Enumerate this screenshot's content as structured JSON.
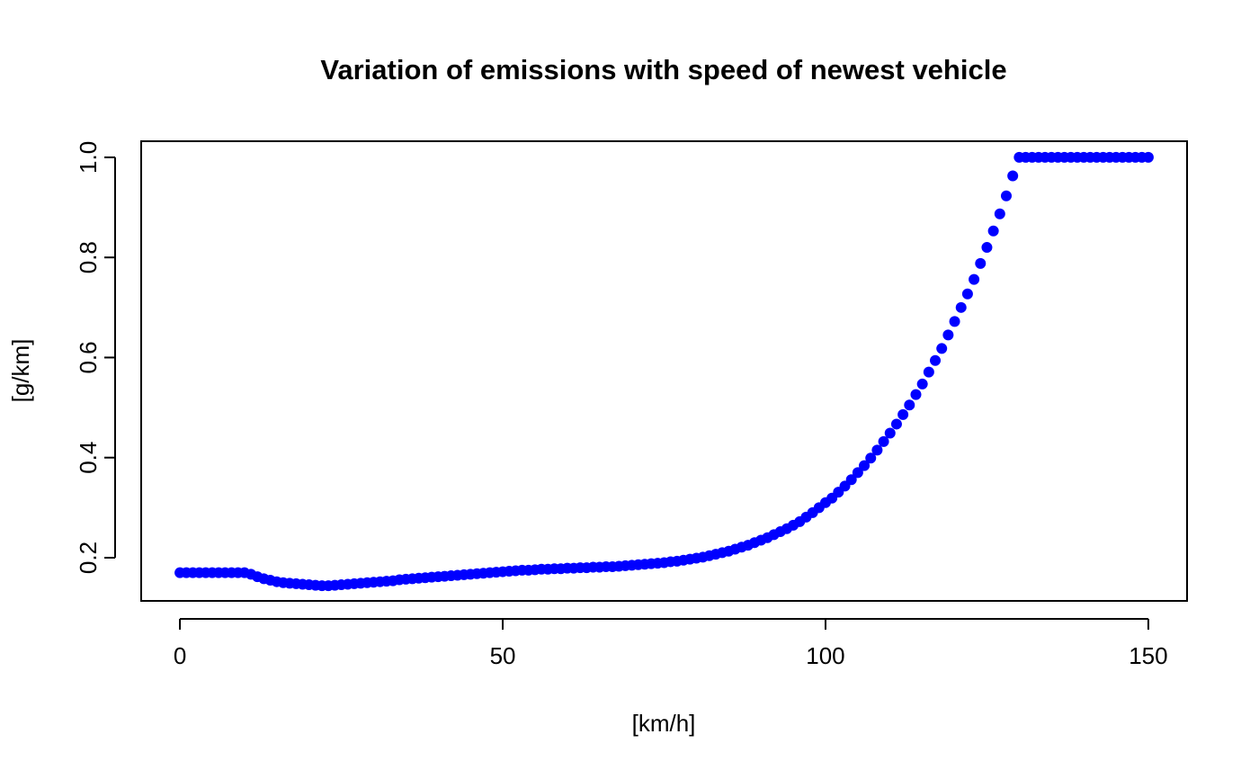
{
  "chart_data": {
    "type": "scatter",
    "title": "Variation of emissions with speed of newest vehicle",
    "x_label": "[km/h]",
    "y_label": "[g/km]",
    "xlim": [
      -6,
      156
    ],
    "ylim": [
      0.1137,
      1.0322
    ],
    "xticks": [
      0,
      50,
      100,
      150
    ],
    "yticks": [
      0.2,
      0.4,
      0.6,
      0.8,
      {
        "value": 1,
        "label": "1.0"
      }
    ],
    "grid": false,
    "color": "#0000ff",
    "x": [
      0,
      1,
      2,
      3,
      4,
      5,
      6,
      7,
      8,
      9,
      10,
      11,
      12,
      13,
      14,
      15,
      16,
      17,
      18,
      19,
      20,
      21,
      22,
      23,
      24,
      25,
      26,
      27,
      28,
      29,
      30,
      31,
      32,
      33,
      34,
      35,
      36,
      37,
      38,
      39,
      40,
      41,
      42,
      43,
      44,
      45,
      46,
      47,
      48,
      49,
      50,
      51,
      52,
      53,
      54,
      55,
      56,
      57,
      58,
      59,
      60,
      61,
      62,
      63,
      64,
      65,
      66,
      67,
      68,
      69,
      70,
      71,
      72,
      73,
      74,
      75,
      76,
      77,
      78,
      79,
      80,
      81,
      82,
      83,
      84,
      85,
      86,
      87,
      88,
      89,
      90,
      91,
      92,
      93,
      94,
      95,
      96,
      97,
      98,
      99,
      100,
      101,
      102,
      103,
      104,
      105,
      106,
      107,
      108,
      109,
      110,
      111,
      112,
      113,
      114,
      115,
      116,
      117,
      118,
      119,
      120,
      121,
      122,
      123,
      124,
      125,
      126,
      127,
      128,
      129,
      130,
      131,
      132,
      133,
      134,
      135,
      136,
      137,
      138,
      139,
      140,
      141,
      142,
      143,
      144,
      145,
      146,
      147,
      148,
      149,
      150
    ],
    "values": [
      0.17,
      0.17,
      0.17,
      0.17,
      0.17,
      0.17,
      0.17,
      0.17,
      0.17,
      0.17,
      0.17,
      0.167,
      0.162,
      0.158,
      0.155,
      0.152,
      0.15,
      0.149,
      0.148,
      0.147,
      0.146,
      0.145,
      0.144,
      0.144,
      0.145,
      0.146,
      0.147,
      0.148,
      0.149,
      0.15,
      0.151,
      0.152,
      0.153,
      0.154,
      0.156,
      0.157,
      0.158,
      0.159,
      0.16,
      0.161,
      0.162,
      0.163,
      0.164,
      0.165,
      0.166,
      0.167,
      0.168,
      0.169,
      0.17,
      0.171,
      0.172,
      0.173,
      0.174,
      0.175,
      0.175,
      0.176,
      0.177,
      0.177,
      0.178,
      0.178,
      0.179,
      0.179,
      0.18,
      0.18,
      0.181,
      0.181,
      0.182,
      0.182,
      0.183,
      0.184,
      0.185,
      0.186,
      0.187,
      0.188,
      0.189,
      0.19,
      0.192,
      0.193,
      0.195,
      0.197,
      0.199,
      0.201,
      0.204,
      0.207,
      0.21,
      0.213,
      0.217,
      0.221,
      0.225,
      0.23,
      0.235,
      0.24,
      0.246,
      0.252,
      0.258,
      0.265,
      0.272,
      0.281,
      0.29,
      0.3,
      0.31,
      0.319,
      0.331,
      0.343,
      0.356,
      0.37,
      0.384,
      0.399,
      0.415,
      0.432,
      0.449,
      0.467,
      0.486,
      0.505,
      0.526,
      0.547,
      0.571,
      0.594,
      0.618,
      0.645,
      0.672,
      0.7,
      0.727,
      0.756,
      0.788,
      0.82,
      0.853,
      0.887,
      0.923,
      0.963,
      1,
      1,
      1,
      1,
      1,
      1,
      1,
      1,
      1,
      1,
      1,
      1,
      1,
      1,
      1,
      1,
      1,
      1,
      1,
      1,
      1
    ]
  }
}
